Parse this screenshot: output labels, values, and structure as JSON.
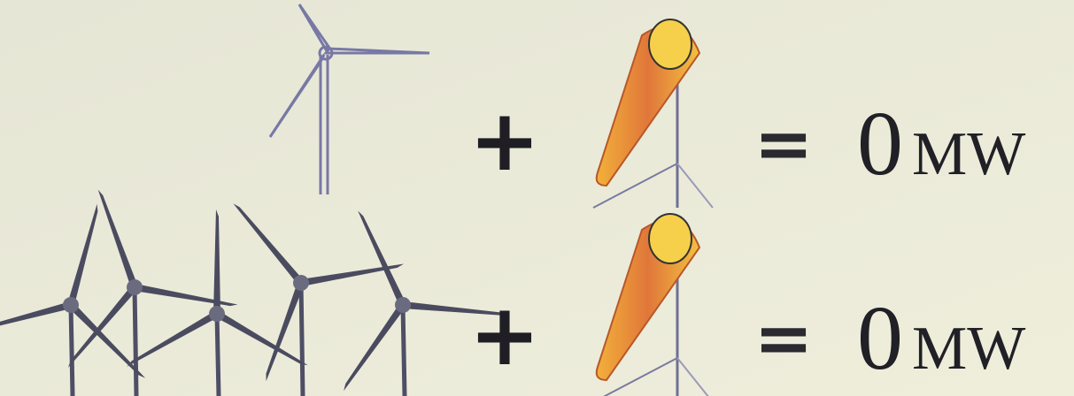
{
  "rows": [
    {
      "plus": "+",
      "equals": "=",
      "amount": "0",
      "unit": "MW"
    },
    {
      "plus": "+",
      "equals": "=",
      "amount": "0",
      "unit": "MW"
    }
  ]
}
